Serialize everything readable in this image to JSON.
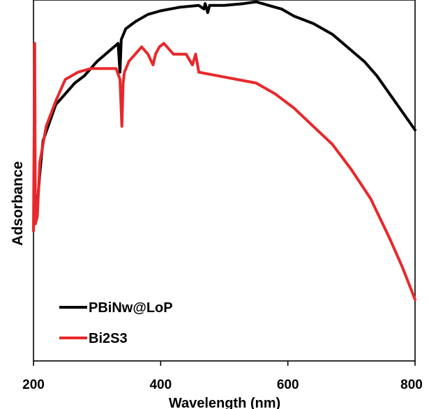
{
  "chart_data": {
    "type": "line",
    "title": "",
    "xlabel": "Wavelength (nm)",
    "ylabel": "Adsorbance",
    "xlim": [
      200,
      800
    ],
    "ylim": [
      0,
      1
    ],
    "x_ticks": [
      "200",
      "400",
      "600",
      "800"
    ],
    "y_ticks_visible": false,
    "grid": false,
    "legend_position": "bottom-left",
    "series": [
      {
        "name": "PBiNw@LoP",
        "color": "#000000",
        "points": [
          [
            203,
            0.38
          ],
          [
            206,
            0.43
          ],
          [
            210,
            0.52
          ],
          [
            215,
            0.61
          ],
          [
            225,
            0.66
          ],
          [
            235,
            0.71
          ],
          [
            250,
            0.74
          ],
          [
            265,
            0.77
          ],
          [
            280,
            0.79
          ],
          [
            300,
            0.83
          ],
          [
            320,
            0.86
          ],
          [
            333,
            0.88
          ],
          [
            336,
            0.8
          ],
          [
            338,
            0.89
          ],
          [
            345,
            0.92
          ],
          [
            360,
            0.94
          ],
          [
            380,
            0.96
          ],
          [
            400,
            0.97
          ],
          [
            430,
            0.98
          ],
          [
            460,
            0.985
          ],
          [
            468,
            0.975
          ],
          [
            470,
            0.99
          ],
          [
            474,
            0.965
          ],
          [
            477,
            0.985
          ],
          [
            500,
            0.985
          ],
          [
            530,
            0.99
          ],
          [
            550,
            0.995
          ],
          [
            570,
            0.985
          ],
          [
            590,
            0.975
          ],
          [
            610,
            0.955
          ],
          [
            640,
            0.935
          ],
          [
            670,
            0.905
          ],
          [
            700,
            0.86
          ],
          [
            720,
            0.83
          ],
          [
            740,
            0.79
          ],
          [
            760,
            0.74
          ],
          [
            780,
            0.69
          ],
          [
            800,
            0.64
          ]
        ]
      },
      {
        "name": "Bi2S3",
        "color": "#e8282b",
        "points": [
          [
            200,
            0.36
          ],
          [
            202,
            0.88
          ],
          [
            203,
            0.38
          ],
          [
            206,
            0.4
          ],
          [
            210,
            0.55
          ],
          [
            220,
            0.65
          ],
          [
            235,
            0.72
          ],
          [
            250,
            0.78
          ],
          [
            270,
            0.8
          ],
          [
            290,
            0.81
          ],
          [
            310,
            0.81
          ],
          [
            330,
            0.81
          ],
          [
            336,
            0.78
          ],
          [
            339,
            0.65
          ],
          [
            341,
            0.77
          ],
          [
            343,
            0.8
          ],
          [
            350,
            0.83
          ],
          [
            370,
            0.87
          ],
          [
            380,
            0.85
          ],
          [
            388,
            0.82
          ],
          [
            392,
            0.85
          ],
          [
            398,
            0.87
          ],
          [
            405,
            0.88
          ],
          [
            420,
            0.85
          ],
          [
            440,
            0.85
          ],
          [
            450,
            0.82
          ],
          [
            455,
            0.85
          ],
          [
            460,
            0.8
          ],
          [
            490,
            0.79
          ],
          [
            520,
            0.78
          ],
          [
            550,
            0.77
          ],
          [
            580,
            0.74
          ],
          [
            610,
            0.7
          ],
          [
            640,
            0.65
          ],
          [
            670,
            0.6
          ],
          [
            700,
            0.53
          ],
          [
            730,
            0.45
          ],
          [
            760,
            0.34
          ],
          [
            780,
            0.26
          ],
          [
            800,
            0.17
          ]
        ]
      }
    ]
  }
}
